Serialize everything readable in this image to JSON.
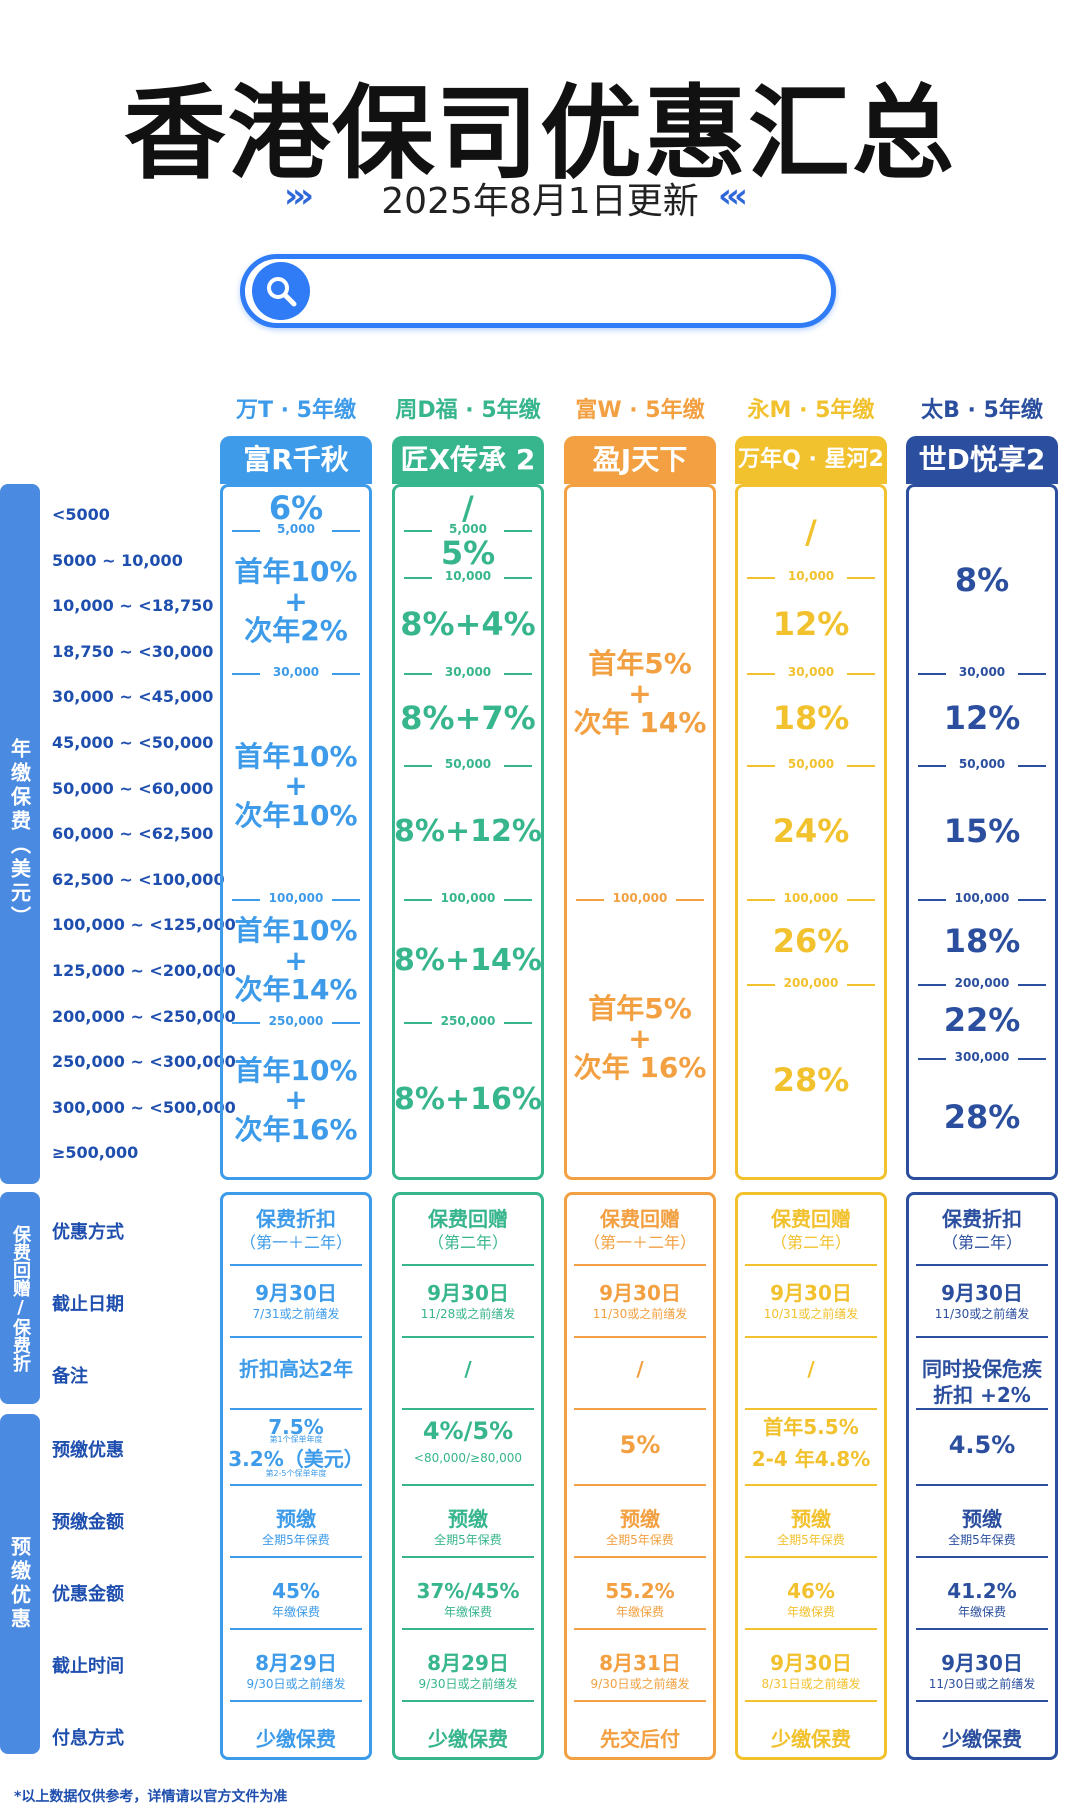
{
  "header": {
    "title": "香港保司优惠汇总",
    "subtitle": "2025年8月1日更新",
    "arrows_left": "›››",
    "arrows_right": "‹‹‹"
  },
  "search": {
    "icon": "search-icon",
    "placeholder": ""
  },
  "sidebar": {
    "premium_label": "年缴保费（美元）",
    "rebate_label": "保费回赠/保费折",
    "prepay_label": "预缴优惠"
  },
  "premium_rows": [
    "<5000",
    "5000 ~ 10,000",
    "10,000 ~ <18,750",
    "18,750 ~ <30,000",
    "30,000 ~ <45,000",
    "45,000 ~ <50,000",
    "50,000 ~ <60,000",
    "60,000 ~ <62,500",
    "62,500 ~ <100,000",
    "100,000 ~ <125,000",
    "125,000 ~ <200,000",
    "200,000 ~ <250,000",
    "250,000 ~ <300,000",
    "300,000 ~ <500,000",
    "≥500,000"
  ],
  "lower_rows": [
    "优惠方式",
    "截止日期",
    "备注",
    "预缴优惠",
    "预缴金额",
    "优惠金额",
    "截止时间",
    "付息方式"
  ],
  "columns": [
    {
      "color": "#3d9be9",
      "head": "万T · 5年缴",
      "product": "富R千秋",
      "tiers": [
        {
          "v": "6%"
        },
        {
          "sep": "5,000"
        },
        {
          "v": "首年10%\n+\n次年2%"
        },
        {
          "sep": "30,000"
        },
        {
          "v": "首年10%\n+\n次年10%"
        },
        {
          "sep": "100,000"
        },
        {
          "v": "首年10%\n+\n次年14%"
        },
        {
          "sep": "250,000"
        },
        {
          "v": "首年10%\n+\n次年16%"
        }
      ],
      "method": "保费折扣",
      "method_sub": "（第一＋二年）",
      "deadline": "9月30日",
      "deadline_sub": "7/31或之前缮发",
      "note": "折扣高达2年",
      "note_sub": "",
      "prepay": "7.5%",
      "prepay_s1": "第1个保单年度",
      "prepay2": "3.2%（美元）",
      "prepay_s2": "第2-5个保单年度",
      "prepay_amt": "预缴",
      "prepay_amt_sub": "全期5年保费",
      "disc_amt": "45%",
      "disc_amt_sub": "年缴保费",
      "cut": "8月29日",
      "cut_sub": "9/30日或之前缮发",
      "interest": "少缴保费"
    },
    {
      "color": "#37b58d",
      "head": "周D福 · 5年缴",
      "product": "匠X传承 2",
      "tiers": [
        {
          "v": "/"
        },
        {
          "sep": "5,000"
        },
        {
          "v": "5%"
        },
        {
          "sep": "10,000"
        },
        {
          "v": "8%+4%"
        },
        {
          "sep": "30,000"
        },
        {
          "v": "8%+7%"
        },
        {
          "sep": "50,000"
        },
        {
          "v": "8%+12%"
        },
        {
          "sep": "100,000"
        },
        {
          "v": "8%+14%"
        },
        {
          "sep": "250,000"
        },
        {
          "v": "8%+16%"
        }
      ],
      "method": "保费回赠",
      "method_sub": "（第二年）",
      "deadline": "9月30日",
      "deadline_sub": "11/28或之前缮发",
      "note": "/",
      "note_sub": "",
      "prepay": "4%/5%",
      "prepay_s1": "<80,000/≥80,000",
      "prepay2": "",
      "prepay_s2": "",
      "prepay_amt": "预缴",
      "prepay_amt_sub": "全期5年保费",
      "disc_amt": "37%/45%",
      "disc_amt_sub": "年缴保费",
      "cut": "8月29日",
      "cut_sub": "9/30日或之前缮发",
      "interest": "少缴保费"
    },
    {
      "color": "#f2a041",
      "head": "富W · 5年缴",
      "product": "盈J天下",
      "tiers": [
        {
          "v": "首年5%\n+\n次年 14%"
        },
        {
          "sep": "100,000"
        },
        {
          "v": "首年5%\n+\n次年 16%"
        }
      ],
      "method": "保费回赠",
      "method_sub": "（第一＋二年）",
      "deadline": "9月30日",
      "deadline_sub": "11/30或之前缮发",
      "note": "/",
      "note_sub": "",
      "prepay": "5%",
      "prepay_s1": "",
      "prepay2": "",
      "prepay_s2": "",
      "prepay_amt": "预缴",
      "prepay_amt_sub": "全期5年保费",
      "disc_amt": "55.2%",
      "disc_amt_sub": "年缴保费",
      "cut": "8月31日",
      "cut_sub": "9/30日或之前缮发",
      "interest": "先交后付"
    },
    {
      "color": "#f2c12e",
      "head": "永M · 5年缴",
      "product": "万年Q · 星河2",
      "tiers": [
        {
          "v": "/"
        },
        {
          "sep": "10,000"
        },
        {
          "v": "12%"
        },
        {
          "sep": "30,000"
        },
        {
          "v": "18%"
        },
        {
          "sep": "50,000"
        },
        {
          "v": "24%"
        },
        {
          "sep": "100,000"
        },
        {
          "v": "26%"
        },
        {
          "sep": "200,000"
        },
        {
          "v": "28%"
        }
      ],
      "method": "保费回赠",
      "method_sub": "（第二年）",
      "deadline": "9月30日",
      "deadline_sub": "10/31或之前缮发",
      "note": "/",
      "note_sub": "",
      "prepay": "首年5.5%",
      "prepay_s1": "",
      "prepay2": "2-4 年4.8%",
      "prepay_s2": "",
      "prepay_amt": "预缴",
      "prepay_amt_sub": "全期5年保费",
      "disc_amt": "46%",
      "disc_amt_sub": "年缴保费",
      "cut": "9月30日",
      "cut_sub": "8/31日或之前缮发",
      "interest": "少缴保费"
    },
    {
      "color": "#2b4f9e",
      "head": "太B · 5年缴",
      "product": "世D悦享2",
      "tiers": [
        {
          "v": "8%"
        },
        {
          "sep": "30,000"
        },
        {
          "v": "12%"
        },
        {
          "sep": "50,000"
        },
        {
          "v": "15%"
        },
        {
          "sep": "100,000"
        },
        {
          "v": "18%"
        },
        {
          "sep": "200,000"
        },
        {
          "v": "22%"
        },
        {
          "sep": "300,000"
        },
        {
          "v": "28%"
        }
      ],
      "method": "保费折扣",
      "method_sub": "（第二年）",
      "deadline": "9月30日",
      "deadline_sub": "11/30或之前缮发",
      "note": "同时投保危疾",
      "note_sub": "折扣 +2%",
      "prepay": "4.5%",
      "prepay_s1": "",
      "prepay2": "",
      "prepay_s2": "",
      "prepay_amt": "预缴",
      "prepay_amt_sub": "全期5年保费",
      "disc_amt": "41.2%",
      "disc_amt_sub": "年缴保费",
      "cut": "9月30日",
      "cut_sub": "11/30日或之前缮发",
      "interest": "少缴保费"
    }
  ],
  "footnote": "*以上数据仅供参考，详情请以官方文件为准"
}
